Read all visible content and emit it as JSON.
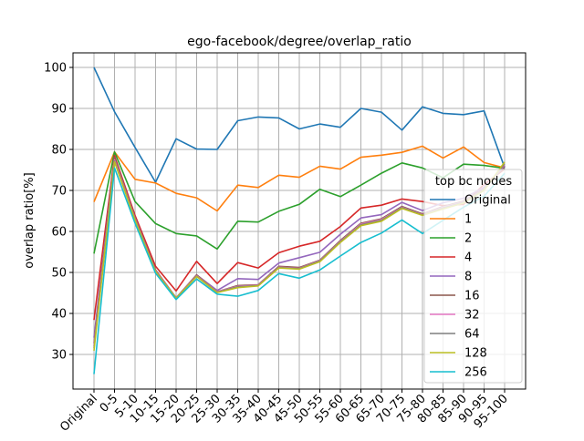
{
  "chart_data": {
    "type": "line",
    "title": "ego-facebook/degree/overlap_ratio",
    "xlabel": "",
    "ylabel": "overlap ratio[%]",
    "ylim": [
      22,
      104
    ],
    "yticks": [
      30,
      40,
      50,
      60,
      70,
      80,
      90,
      100
    ],
    "grid": true,
    "legend_title": "top bc nodes",
    "legend_position": "center-right",
    "categories": [
      "Original",
      "0-5",
      "5-10",
      "10-15",
      "15-20",
      "20-25",
      "25-30",
      "30-35",
      "35-40",
      "40-45",
      "45-50",
      "50-55",
      "55-60",
      "60-65",
      "65-70",
      "70-75",
      "75-80",
      "80-85",
      "85-90",
      "90-95",
      "95-100"
    ],
    "series": [
      {
        "name": "Original",
        "color": "#1f77b4",
        "values": [
          100,
          89.2,
          80.5,
          72.0,
          82.6,
          80.1,
          80.0,
          87.0,
          87.9,
          87.7,
          85.0,
          86.2,
          85.4,
          90.0,
          89.1,
          84.7,
          90.4,
          88.8,
          88.5,
          89.4,
          75.6
        ]
      },
      {
        "name": "1",
        "color": "#ff7f0e",
        "values": [
          67.2,
          79.4,
          72.7,
          71.8,
          69.3,
          68.2,
          65.0,
          71.3,
          70.7,
          73.7,
          73.2,
          75.9,
          75.2,
          78.1,
          78.6,
          79.3,
          80.8,
          77.9,
          80.6,
          76.8,
          75.5
        ]
      },
      {
        "name": "2",
        "color": "#2ca02c",
        "values": [
          54.6,
          79.4,
          67.3,
          61.9,
          59.5,
          58.9,
          55.7,
          62.5,
          62.3,
          64.9,
          66.6,
          70.3,
          68.5,
          71.3,
          74.2,
          76.7,
          75.5,
          73.1,
          76.4,
          76.1,
          75.4
        ]
      },
      {
        "name": "4",
        "color": "#d62728",
        "values": [
          38.4,
          78.5,
          63.9,
          51.5,
          45.5,
          52.7,
          47.3,
          52.4,
          51.1,
          54.8,
          56.4,
          57.6,
          61.2,
          65.7,
          66.4,
          67.9,
          67.3,
          66.3,
          66.6,
          71.5,
          75.2
        ]
      },
      {
        "name": "8",
        "color": "#9467bd",
        "values": [
          34.1,
          78.0,
          63.3,
          50.6,
          43.8,
          49.4,
          45.6,
          48.5,
          48.3,
          52.3,
          53.6,
          54.9,
          59.3,
          63.3,
          64.1,
          67.1,
          65.1,
          67.0,
          68.1,
          70.8,
          75.8
        ]
      },
      {
        "name": "16",
        "color": "#8c564b",
        "values": [
          32.7,
          77.9,
          63.1,
          50.6,
          43.8,
          49.4,
          45.3,
          46.8,
          47.0,
          51.5,
          51.2,
          53.0,
          57.8,
          62.0,
          63.1,
          66.1,
          64.3,
          66.1,
          67.4,
          70.5,
          76.0
        ]
      },
      {
        "name": "32",
        "color": "#e377c2",
        "values": [
          32.0,
          77.5,
          63.0,
          50.4,
          43.8,
          49.2,
          45.3,
          46.6,
          46.9,
          51.3,
          51.0,
          52.9,
          57.6,
          61.8,
          62.9,
          65.9,
          64.1,
          65.9,
          67.2,
          70.3,
          76.3
        ]
      },
      {
        "name": "64",
        "color": "#7f7f7f",
        "values": [
          31.5,
          77.2,
          62.9,
          50.3,
          43.7,
          49.1,
          45.2,
          46.5,
          46.8,
          51.2,
          50.9,
          52.8,
          57.5,
          61.6,
          62.7,
          65.8,
          64.0,
          65.7,
          67.1,
          70.2,
          76.5
        ]
      },
      {
        "name": "128",
        "color": "#bcbd22",
        "values": [
          30.9,
          77.0,
          62.8,
          50.2,
          43.7,
          49.0,
          45.1,
          46.3,
          46.7,
          51.1,
          50.8,
          52.6,
          57.3,
          61.4,
          62.5,
          65.6,
          63.9,
          65.5,
          66.9,
          70.0,
          76.9
        ]
      },
      {
        "name": "256",
        "color": "#17becf",
        "values": [
          25.2,
          75.5,
          62.0,
          49.8,
          43.4,
          48.4,
          44.7,
          44.2,
          45.6,
          49.7,
          48.6,
          50.6,
          54.0,
          57.3,
          59.6,
          62.8,
          59.5,
          62.7,
          65.9,
          68.6,
          74.2
        ]
      }
    ]
  }
}
